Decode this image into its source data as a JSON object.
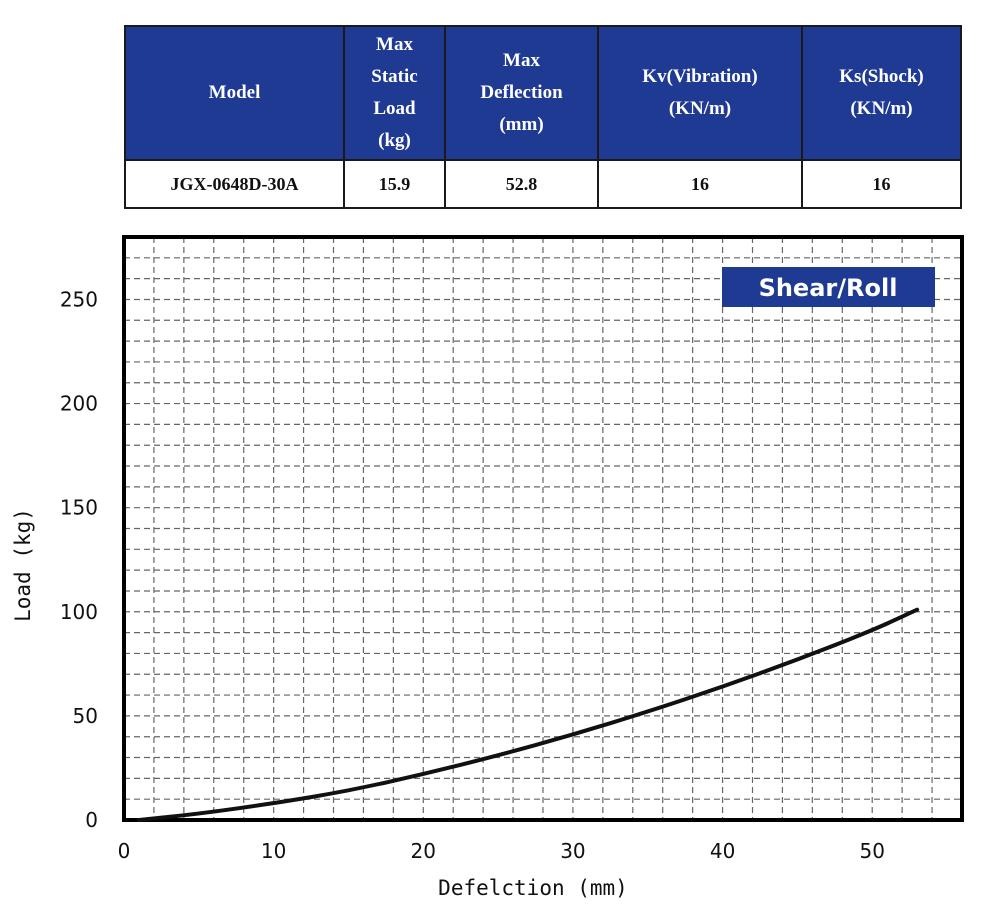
{
  "table": {
    "headers": [
      "Model",
      "Max\nStatic\nLoad\n(kg)",
      "Max\nDeflection\n(mm)",
      "Kv(Vibration)\n(KN/m)",
      "Ks(Shock)\n(KN/m)"
    ],
    "row": [
      "JGX-0648D-30A",
      "15.9",
      "52.8",
      "16",
      "16"
    ]
  },
  "chart_data": {
    "type": "line",
    "badge": "Shear/Roll",
    "xlabel": "Defelction (mm)",
    "ylabel": "Load (kg)",
    "xlim": [
      0,
      56
    ],
    "ylim": [
      0,
      280
    ],
    "xticks": [
      0,
      10,
      20,
      30,
      40,
      50
    ],
    "yticks": [
      0,
      50,
      100,
      150,
      200,
      250
    ],
    "grid": true,
    "series": [
      {
        "x": [
          1,
          5,
          10,
          15,
          20,
          25,
          30,
          35,
          40,
          45,
          50,
          53
        ],
        "y": [
          0,
          3,
          8,
          14,
          22,
          31,
          41,
          52,
          64,
          77,
          91,
          101
        ]
      }
    ]
  },
  "colors": {
    "header_bg": "#1f3a93",
    "badge_bg": "#1f3a93",
    "curve": "#111111"
  }
}
